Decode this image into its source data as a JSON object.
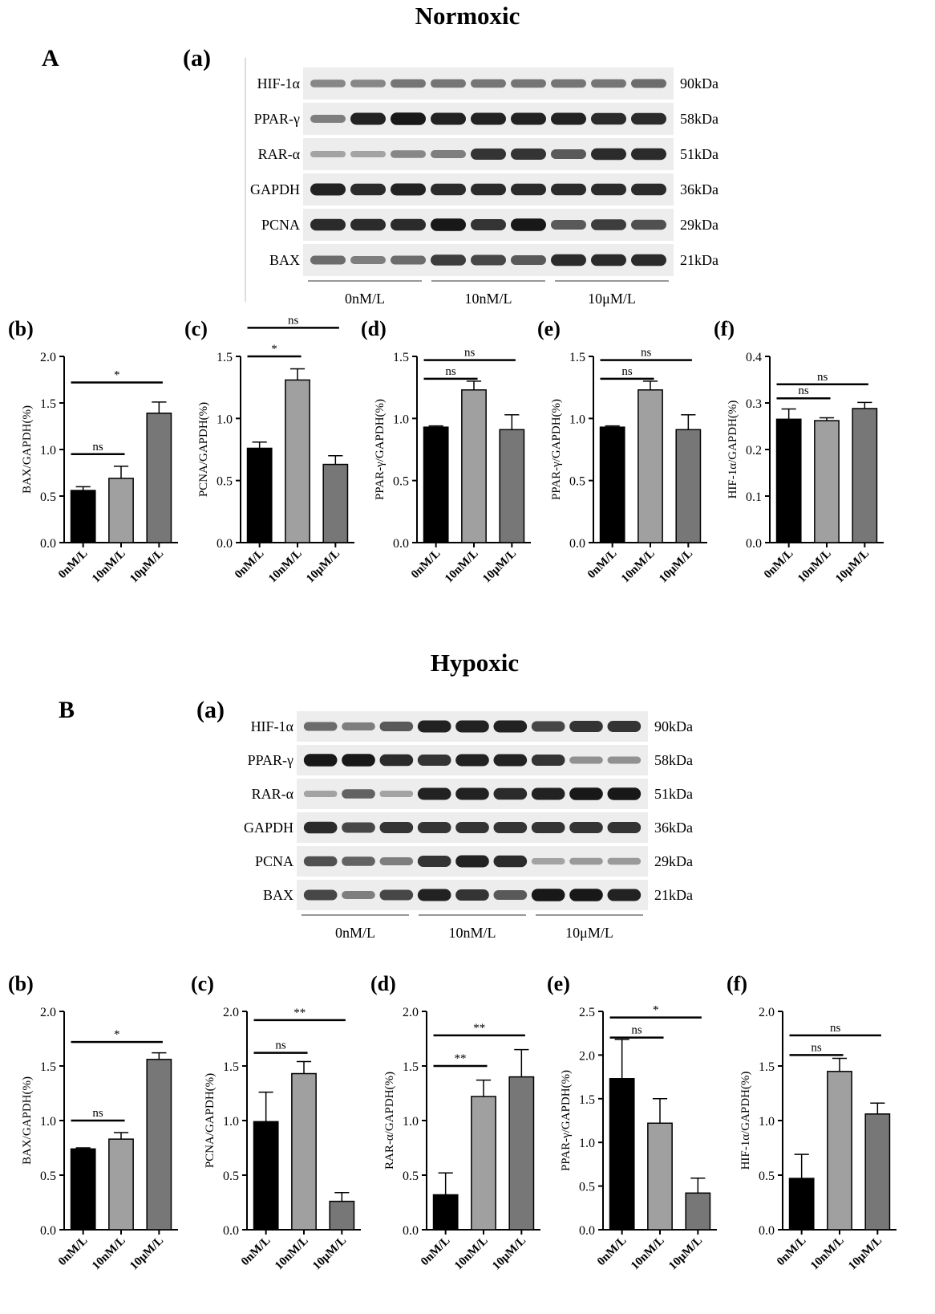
{
  "sections": [
    {
      "title": "Normoxic",
      "letter": "A",
      "blot_letter": "(a)",
      "blot": {
        "proteins": [
          "HIF-1α",
          "PPAR-γ",
          "RAR-α",
          "GAPDH",
          "PCNA",
          "BAX"
        ],
        "sizes": [
          "90kDa",
          "58kDa",
          "51kDa",
          "36kDa",
          "29kDa",
          "21kDa"
        ],
        "groups": [
          "0nM/L",
          "10nM/L",
          "10μM/L"
        ],
        "intensity": [
          [
            0.35,
            0.35,
            0.45,
            0.45,
            0.45,
            0.45,
            0.45,
            0.45,
            0.5
          ],
          [
            0.4,
            0.9,
            0.95,
            0.9,
            0.9,
            0.9,
            0.9,
            0.85,
            0.85
          ],
          [
            0.2,
            0.2,
            0.35,
            0.4,
            0.8,
            0.8,
            0.6,
            0.85,
            0.85
          ],
          [
            0.9,
            0.85,
            0.9,
            0.85,
            0.85,
            0.85,
            0.85,
            0.85,
            0.85
          ],
          [
            0.85,
            0.85,
            0.85,
            0.95,
            0.8,
            0.95,
            0.6,
            0.75,
            0.65
          ],
          [
            0.5,
            0.4,
            0.5,
            0.75,
            0.7,
            0.6,
            0.85,
            0.85,
            0.85
          ]
        ]
      }
    },
    {
      "title": "Hypoxic",
      "letter": "B",
      "blot_letter": "(a)",
      "blot": {
        "proteins": [
          "HIF-1α",
          "PPAR-γ",
          "RAR-α",
          "GAPDH",
          "PCNA",
          "BAX"
        ],
        "sizes": [
          "90kDa",
          "58kDa",
          "51kDa",
          "36kDa",
          "29kDa",
          "21kDa"
        ],
        "groups": [
          "0nM/L",
          "10nM/L",
          "10μM/L"
        ],
        "intensity": [
          [
            0.5,
            0.4,
            0.6,
            0.9,
            0.9,
            0.9,
            0.7,
            0.8,
            0.8
          ],
          [
            0.95,
            0.95,
            0.85,
            0.8,
            0.9,
            0.9,
            0.8,
            0.3,
            0.3
          ],
          [
            0.2,
            0.55,
            0.2,
            0.9,
            0.9,
            0.85,
            0.9,
            0.95,
            0.95
          ],
          [
            0.85,
            0.7,
            0.8,
            0.8,
            0.8,
            0.8,
            0.8,
            0.8,
            0.8
          ],
          [
            0.65,
            0.55,
            0.4,
            0.8,
            0.9,
            0.85,
            0.2,
            0.25,
            0.25
          ],
          [
            0.7,
            0.4,
            0.7,
            0.9,
            0.8,
            0.6,
            0.95,
            0.95,
            0.9
          ]
        ]
      }
    }
  ],
  "chart_data": [
    {
      "type": "bar",
      "letter": "(b)",
      "ylabel": "BAX/GAPDH(%)",
      "categories": [
        "0nM/L",
        "10nM/L",
        "10μM/L"
      ],
      "values": [
        0.56,
        0.69,
        1.39
      ],
      "errors": [
        0.04,
        0.13,
        0.12
      ],
      "ylim": [
        0,
        2.0
      ],
      "yticks": [
        "0.0",
        "0.5",
        "1.0",
        "1.5",
        "2.0"
      ],
      "colors": [
        "#000000",
        "#a0a0a0",
        "#777777"
      ],
      "sig": [
        {
          "from": 0,
          "to": 1,
          "label": "ns",
          "level": 0.95
        },
        {
          "from": 0,
          "to": 2,
          "label": "*",
          "level": 1.72
        }
      ]
    },
    {
      "type": "bar",
      "letter": "(c)",
      "ylabel": "PCNA/GAPDH(%)",
      "categories": [
        "0nM/L",
        "10nM/L",
        "10μM/L"
      ],
      "values": [
        0.76,
        1.31,
        0.63
      ],
      "errors": [
        0.05,
        0.09,
        0.07
      ],
      "ylim": [
        0,
        1.5
      ],
      "yticks": [
        "0.0",
        "0.5",
        "1.0",
        "1.5"
      ],
      "colors": [
        "#000000",
        "#a0a0a0",
        "#777777"
      ],
      "sig": [
        {
          "from": 0,
          "to": 1,
          "label": "*",
          "level": 1.5
        },
        {
          "from": 0,
          "to": 2,
          "label": "ns",
          "level": 1.73
        }
      ]
    },
    {
      "type": "bar",
      "letter": "(d)",
      "ylabel": "PPAR-γ/GAPDH(%)",
      "categories": [
        "0nM/L",
        "10nM/L",
        "10μM/L"
      ],
      "values": [
        0.93,
        1.23,
        0.91
      ],
      "errors": [
        0.01,
        0.07,
        0.12
      ],
      "ylim": [
        0,
        1.5
      ],
      "yticks": [
        "0.0",
        "0.5",
        "1.0",
        "1.5"
      ],
      "colors": [
        "#000000",
        "#a0a0a0",
        "#777777"
      ],
      "sig": [
        {
          "from": 0,
          "to": 1,
          "label": "ns",
          "level": 1.32
        },
        {
          "from": 0,
          "to": 2,
          "label": "ns",
          "level": 1.47
        }
      ]
    },
    {
      "type": "bar",
      "letter": "(e)",
      "ylabel": "PPAR-γ/GAPDH(%)",
      "categories": [
        "0nM/L",
        "10nM/L",
        "10μM/L"
      ],
      "values": [
        0.93,
        1.23,
        0.91
      ],
      "errors": [
        0.01,
        0.07,
        0.12
      ],
      "ylim": [
        0,
        1.5
      ],
      "yticks": [
        "0.0",
        "0.5",
        "1.0",
        "1.5"
      ],
      "colors": [
        "#000000",
        "#a0a0a0",
        "#777777"
      ],
      "sig": [
        {
          "from": 0,
          "to": 1,
          "label": "ns",
          "level": 1.32
        },
        {
          "from": 0,
          "to": 2,
          "label": "ns",
          "level": 1.47
        }
      ]
    },
    {
      "type": "bar",
      "letter": "(f)",
      "ylabel": "HIF-1α/GAPDH(%)",
      "categories": [
        "0nM/L",
        "10nM/L",
        "10μM/L"
      ],
      "values": [
        0.265,
        0.262,
        0.288
      ],
      "errors": [
        0.022,
        0.006,
        0.013
      ],
      "ylim": [
        0,
        0.4
      ],
      "yticks": [
        "0.0",
        "0.1",
        "0.2",
        "0.3",
        "0.4"
      ],
      "colors": [
        "#000000",
        "#a0a0a0",
        "#777777"
      ],
      "sig": [
        {
          "from": 0,
          "to": 1,
          "label": "ns",
          "level": 0.31
        },
        {
          "from": 0,
          "to": 2,
          "label": "ns",
          "level": 0.34
        }
      ]
    },
    {
      "type": "bar",
      "letter": "(b)",
      "ylabel": "BAX/GAPDH(%)",
      "categories": [
        "0nM/L",
        "10nM/L",
        "10μM/L"
      ],
      "values": [
        0.74,
        0.83,
        1.56
      ],
      "errors": [
        0.01,
        0.06,
        0.06
      ],
      "ylim": [
        0,
        2.0
      ],
      "yticks": [
        "0.0",
        "0.5",
        "1.0",
        "1.5",
        "2.0"
      ],
      "colors": [
        "#000000",
        "#a0a0a0",
        "#777777"
      ],
      "sig": [
        {
          "from": 0,
          "to": 1,
          "label": "ns",
          "level": 1.0
        },
        {
          "from": 0,
          "to": 2,
          "label": "*",
          "level": 1.72
        }
      ]
    },
    {
      "type": "bar",
      "letter": "(c)",
      "ylabel": "PCNA/GAPDH(%)",
      "categories": [
        "0nM/L",
        "10nM/L",
        "10μM/L"
      ],
      "values": [
        0.99,
        1.43,
        0.26
      ],
      "errors": [
        0.27,
        0.11,
        0.08
      ],
      "ylim": [
        0,
        2.0
      ],
      "yticks": [
        "0.0",
        "0.5",
        "1.0",
        "1.5",
        "2.0"
      ],
      "colors": [
        "#000000",
        "#a0a0a0",
        "#777777"
      ],
      "sig": [
        {
          "from": 0,
          "to": 1,
          "label": "ns",
          "level": 1.62
        },
        {
          "from": 0,
          "to": 2,
          "label": "**",
          "level": 1.92
        }
      ]
    },
    {
      "type": "bar",
      "letter": "(d)",
      "ylabel": "RAR-α/GAPDH(%)",
      "categories": [
        "0nM/L",
        "10nM/L",
        "10μM/L"
      ],
      "values": [
        0.32,
        1.22,
        1.4
      ],
      "errors": [
        0.2,
        0.15,
        0.25
      ],
      "ylim": [
        0,
        2.0
      ],
      "yticks": [
        "0.0",
        "0.5",
        "1.0",
        "1.5",
        "2.0"
      ],
      "colors": [
        "#000000",
        "#a0a0a0",
        "#777777"
      ],
      "sig": [
        {
          "from": 0,
          "to": 1,
          "label": "**",
          "level": 1.5
        },
        {
          "from": 0,
          "to": 2,
          "label": "**",
          "level": 1.78
        }
      ]
    },
    {
      "type": "bar",
      "letter": "(e)",
      "ylabel": "PPAR-γ/GAPDH(%)",
      "categories": [
        "0nM/L",
        "10nM/L",
        "10μM/L"
      ],
      "values": [
        1.73,
        1.22,
        0.42
      ],
      "errors": [
        0.45,
        0.28,
        0.17
      ],
      "ylim": [
        0,
        2.5
      ],
      "yticks": [
        "0.0",
        "0.5",
        "1.0",
        "1.5",
        "2.0",
        "2.5"
      ],
      "colors": [
        "#000000",
        "#a0a0a0",
        "#777777"
      ],
      "sig": [
        {
          "from": 0,
          "to": 1,
          "label": "ns",
          "level": 2.2
        },
        {
          "from": 0,
          "to": 2,
          "label": "*",
          "level": 2.43
        }
      ]
    },
    {
      "type": "bar",
      "letter": "(f)",
      "ylabel": "HIF-1α/GAPDH(%)",
      "categories": [
        "0nM/L",
        "10nM/L",
        "10μM/L"
      ],
      "values": [
        0.47,
        1.45,
        1.06
      ],
      "errors": [
        0.22,
        0.12,
        0.1
      ],
      "ylim": [
        0,
        2.0
      ],
      "yticks": [
        "0.0",
        "0.5",
        "1.0",
        "1.5",
        "2.0"
      ],
      "colors": [
        "#000000",
        "#a0a0a0",
        "#777777"
      ],
      "sig": [
        {
          "from": 0,
          "to": 1,
          "label": "ns",
          "level": 1.6
        },
        {
          "from": 0,
          "to": 2,
          "label": "ns",
          "level": 1.78
        }
      ]
    }
  ]
}
